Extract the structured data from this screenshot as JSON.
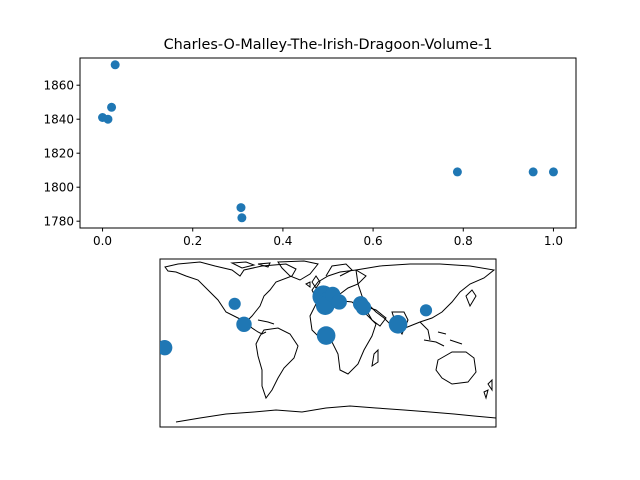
{
  "chart_data": [
    {
      "type": "scatter",
      "title": "Charles-O-Malley-The-Irish-Dragoon-Volume-1",
      "xlabel": "",
      "ylabel": "",
      "xlim": [
        -0.05,
        1.05
      ],
      "ylim": [
        1776,
        1876
      ],
      "xticks": [
        "0.0",
        "0.2",
        "0.4",
        "0.6",
        "0.8",
        "1.0"
      ],
      "yticks": [
        "1780",
        "1800",
        "1820",
        "1840",
        "1860"
      ],
      "grid": false,
      "marker_color": "#1f77b4",
      "points": [
        {
          "x": 0.0,
          "y": 1841
        },
        {
          "x": 0.012,
          "y": 1840
        },
        {
          "x": 0.02,
          "y": 1847
        },
        {
          "x": 0.028,
          "y": 1872
        },
        {
          "x": 0.307,
          "y": 1788
        },
        {
          "x": 0.309,
          "y": 1782
        },
        {
          "x": 0.787,
          "y": 1809
        },
        {
          "x": 0.955,
          "y": 1809
        },
        {
          "x": 1.0,
          "y": 1809
        }
      ]
    },
    {
      "type": "scatter",
      "subtype": "geographic-map",
      "projection": "equirectangular",
      "title": "",
      "marker_color": "#1f77b4",
      "points": [
        {
          "lon": -100,
          "lat": 42,
          "size": 1
        },
        {
          "lon": -90,
          "lat": 20,
          "size": 2
        },
        {
          "lon": -175,
          "lat": -5,
          "size": 2
        },
        {
          "lon": -5,
          "lat": 50,
          "size": 4
        },
        {
          "lon": 0,
          "lat": 45,
          "size": 3
        },
        {
          "lon": -3,
          "lat": 40,
          "size": 3
        },
        {
          "lon": 5,
          "lat": 52,
          "size": 2
        },
        {
          "lon": 12,
          "lat": 44,
          "size": 2
        },
        {
          "lon": 35,
          "lat": 42,
          "size": 2
        },
        {
          "lon": 38,
          "lat": 38,
          "size": 2
        },
        {
          "lon": -2,
          "lat": 8,
          "size": 3
        },
        {
          "lon": 75,
          "lat": 20,
          "size": 3
        },
        {
          "lon": 105,
          "lat": 35,
          "size": 1
        }
      ]
    }
  ]
}
